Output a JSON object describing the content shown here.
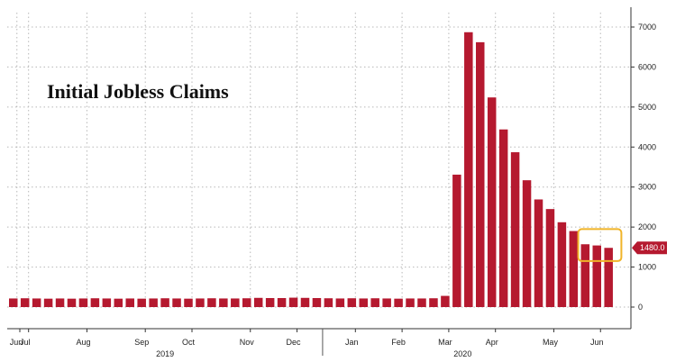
{
  "chart_data": {
    "type": "bar",
    "title": "Initial Jobless Claims",
    "xlabel": "",
    "ylabel": "",
    "ylim": [
      -300,
      7500
    ],
    "y_ticks": [
      0,
      1000,
      2000,
      3000,
      4000,
      5000,
      6000,
      7000
    ],
    "y_axis_side": "right",
    "grid": true,
    "bar_color": "#b5192f",
    "highlight_color": "#f0b429",
    "last_value_label": "1480.0",
    "month_labels": [
      "Jun",
      "Jul",
      "Aug",
      "Sep",
      "Oct",
      "Nov",
      "Dec",
      "Jan",
      "Feb",
      "Mar",
      "Apr",
      "May",
      "Jun"
    ],
    "month_label_bar_index": [
      0,
      1,
      6,
      11,
      15,
      20,
      24,
      29,
      33,
      37,
      41,
      46,
      50
    ],
    "year_labels": [
      "2019",
      "2020"
    ],
    "year_label_bar_index": [
      13,
      38.5
    ],
    "highlight_bar_range": [
      49,
      52
    ],
    "values": [
      215,
      220,
      215,
      210,
      215,
      210,
      215,
      220,
      215,
      210,
      215,
      210,
      215,
      220,
      215,
      210,
      215,
      220,
      215,
      215,
      220,
      230,
      225,
      225,
      235,
      230,
      225,
      220,
      215,
      220,
      215,
      220,
      215,
      210,
      215,
      215,
      220,
      280,
      3310,
      6870,
      6620,
      5240,
      4440,
      3870,
      3170,
      2690,
      2450,
      2120,
      1900,
      1570,
      1540,
      1480
    ]
  }
}
